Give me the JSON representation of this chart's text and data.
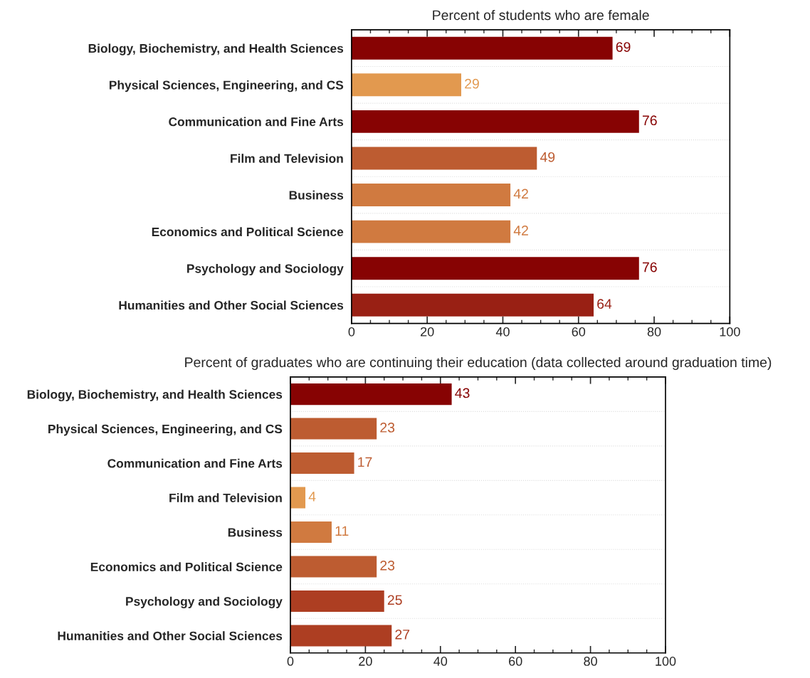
{
  "chart_data": [
    {
      "type": "bar",
      "orientation": "horizontal",
      "title": "Percent of students who are female",
      "categories": [
        "Biology, Biochemistry, and Health Sciences",
        "Physical Sciences, Engineering, and CS",
        "Communication and Fine Arts",
        "Film and Television",
        "Business",
        "Economics and Political Science",
        "Psychology and Sociology",
        "Humanities and Other Social Sciences"
      ],
      "values": [
        69,
        29,
        76,
        49,
        42,
        42,
        76,
        64
      ],
      "colors": [
        "#870303",
        "#e2994f",
        "#870303",
        "#bd5c31",
        "#d07a40",
        "#d07a40",
        "#870303",
        "#992014"
      ],
      "xlim": [
        0,
        100
      ],
      "xticks": [
        0,
        20,
        40,
        60,
        80,
        100
      ],
      "data_labels": true,
      "grid": "y",
      "legend": false
    },
    {
      "type": "bar",
      "orientation": "horizontal",
      "title": "Percent of graduates who are continuing their education (data collected around graduation time)",
      "categories": [
        "Biology, Biochemistry, and Health Sciences",
        "Physical Sciences, Engineering, and CS",
        "Communication and Fine Arts",
        "Film and Television",
        "Business",
        "Economics and Political Science",
        "Psychology and Sociology",
        "Humanities and Other Social Sciences"
      ],
      "values": [
        43,
        23,
        17,
        4,
        11,
        23,
        25,
        27
      ],
      "colors": [
        "#870303",
        "#bd5c31",
        "#bd5c31",
        "#e2994f",
        "#d07a40",
        "#bd5c31",
        "#ad3e22",
        "#ad3e22"
      ],
      "xlim": [
        0,
        100
      ],
      "xticks": [
        0,
        20,
        40,
        60,
        80,
        100
      ],
      "data_labels": true,
      "grid": "y",
      "legend": false
    }
  ]
}
